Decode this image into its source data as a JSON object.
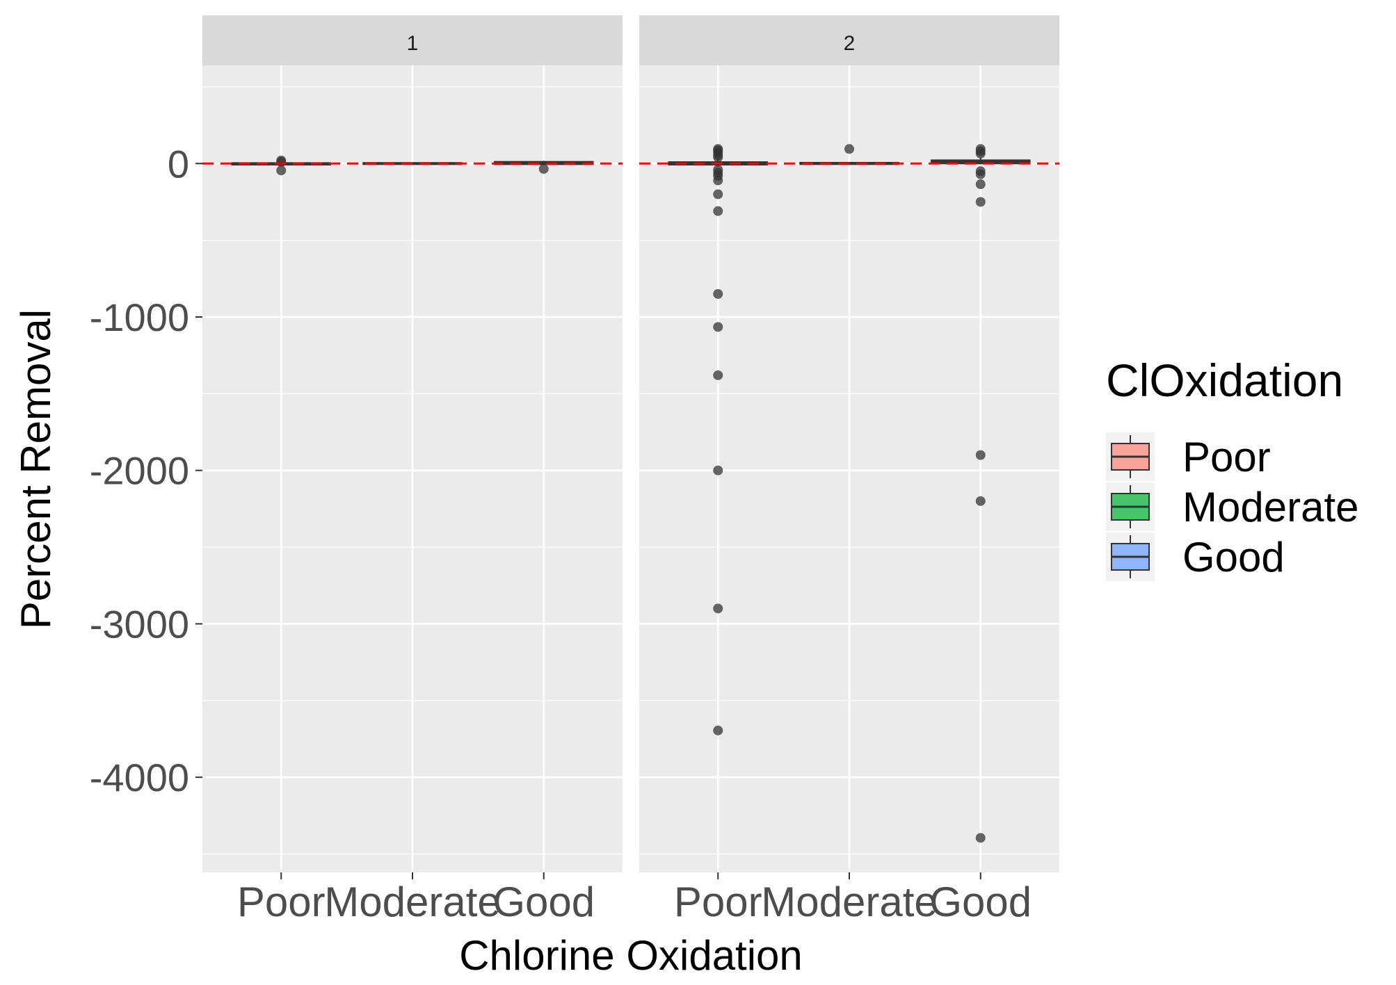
{
  "chart_data": {
    "type": "boxplot",
    "xlabel": "Chlorine Oxidation",
    "ylabel": "Percent Removal",
    "ylim": [
      -4620,
      640
    ],
    "y_ticks": [
      0,
      -1000,
      -2000,
      -3000,
      -4000
    ],
    "y_tick_labels": [
      "0",
      "-1000",
      "-2000",
      "-3000",
      "-4000"
    ],
    "categories": [
      "Poor",
      "Moderate",
      "Good"
    ],
    "reference_line": {
      "y": 0,
      "color": "#ff0000",
      "style": "dashed"
    },
    "legend": {
      "title": "ClOxidation",
      "position": "right",
      "entries": [
        {
          "label": "Poor",
          "color": "#f8a29a"
        },
        {
          "label": "Moderate",
          "color": "#48c46a"
        },
        {
          "label": "Good",
          "color": "#8fb5ff"
        }
      ]
    },
    "panels": [
      {
        "strip": "1",
        "boxes": [
          {
            "category": "Poor",
            "color": "#f8a29a",
            "q1": -8,
            "median": -2,
            "q3": 4,
            "whisker_low": -12,
            "whisker_high": 8,
            "outliers": [
              20,
              10,
              -45
            ]
          },
          {
            "category": "Moderate",
            "color": "#48c46a",
            "q1": -4,
            "median": 0,
            "q3": 4,
            "whisker_low": -6,
            "whisker_high": 6,
            "outliers": []
          },
          {
            "category": "Good",
            "color": "#8fb5ff",
            "q1": -5,
            "median": 3,
            "q3": 12,
            "whisker_low": -10,
            "whisker_high": 18,
            "outliers": [
              -35
            ]
          }
        ]
      },
      {
        "strip": "2",
        "boxes": [
          {
            "category": "Poor",
            "color": "#f8a29a",
            "q1": -8,
            "median": 0,
            "q3": 10,
            "whisker_low": -20,
            "whisker_high": 30,
            "outliers": [
              95,
              85,
              70,
              55,
              40,
              -40,
              -60,
              -80,
              -110,
              -200,
              -310,
              -850,
              -1065,
              -1380,
              -2000,
              -2900,
              -3695
            ]
          },
          {
            "category": "Moderate",
            "color": "#48c46a",
            "q1": -4,
            "median": 0,
            "q3": 6,
            "whisker_low": -8,
            "whisker_high": 10,
            "outliers": [
              95
            ]
          },
          {
            "category": "Good",
            "color": "#8fb5ff",
            "q1": 0,
            "median": 10,
            "q3": 22,
            "whisker_low": -5,
            "whisker_high": 40,
            "outliers": [
              95,
              80,
              65,
              -50,
              -70,
              -135,
              -250,
              -1900,
              -2200,
              -4395
            ]
          }
        ]
      }
    ]
  }
}
